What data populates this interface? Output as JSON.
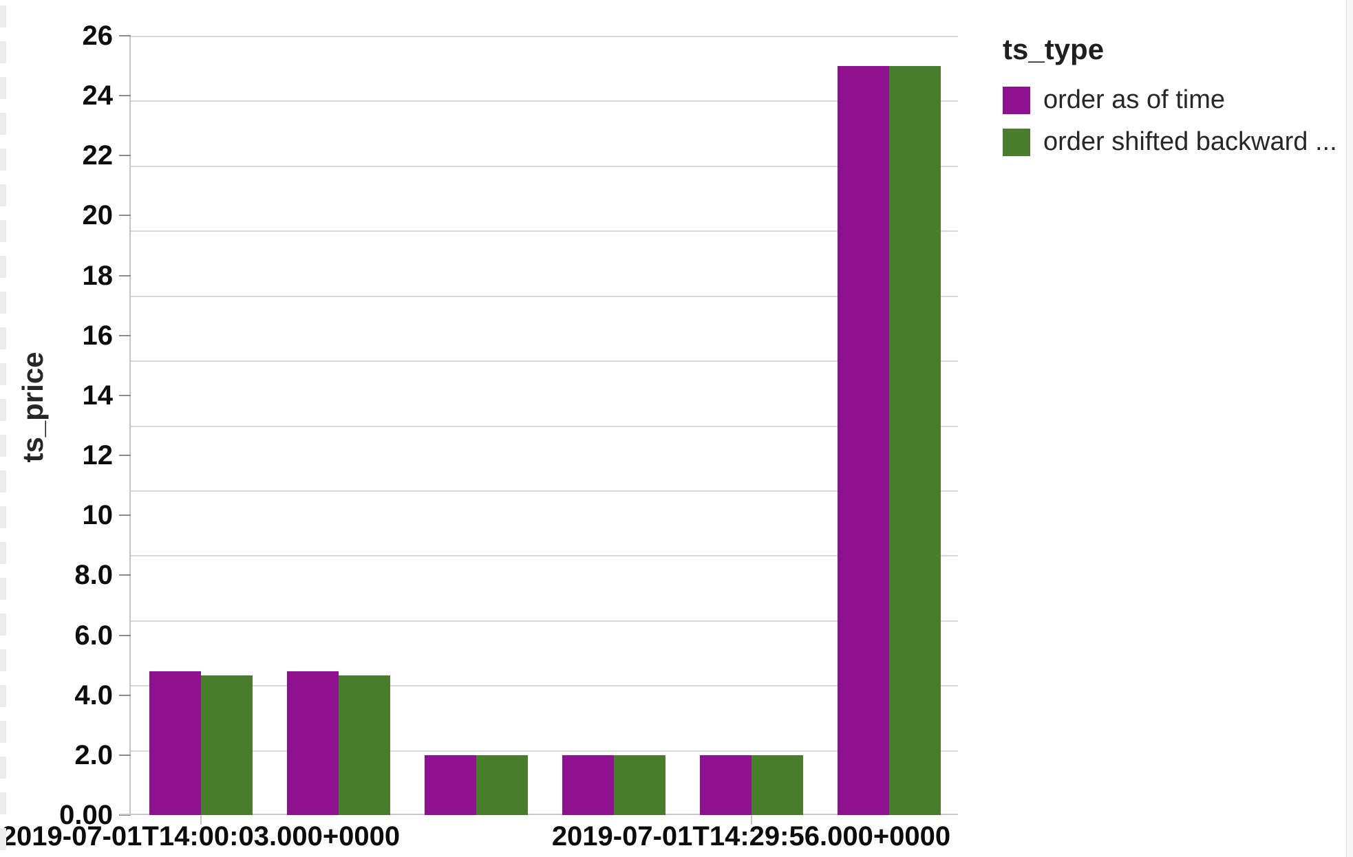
{
  "chart_data": {
    "type": "bar",
    "title": "",
    "xlabel": "",
    "ylabel": "ts_price",
    "ylim": [
      0,
      26
    ],
    "grid": true,
    "grid_divisions": 12,
    "y_tick_labels": [
      "26",
      "24",
      "22",
      "20",
      "18",
      "16",
      "14",
      "12",
      "10",
      "8.0",
      "6.0",
      "4.0",
      "2.0",
      "0.00"
    ],
    "n_groups": 6,
    "x_tick_labels": [
      "2019-07-01T14:00:03.000+0000",
      "2019-07-01T14:29:56.000+0000"
    ],
    "x_tick_group_index": [
      0,
      4
    ],
    "legend": {
      "title": "ts_type",
      "position": "top-right",
      "entries": [
        {
          "label": "order as of time",
          "color": "#8E1190"
        },
        {
          "label": "order shifted backward ...",
          "color": "#4A7C2E"
        }
      ]
    },
    "series": [
      {
        "name": "order as of time",
        "color": "#8E1190",
        "values": [
          4.8,
          4.8,
          2.0,
          2.0,
          2.0,
          25.0
        ]
      },
      {
        "name": "order shifted backward ...",
        "color": "#4A7C2E",
        "values": [
          4.65,
          4.65,
          2.0,
          2.0,
          2.0,
          25.0
        ]
      }
    ],
    "colors": {
      "gridline": "#d9d9d9",
      "axis_domain": "#c4c4c4",
      "tick_label": "#0c0c0c"
    }
  }
}
